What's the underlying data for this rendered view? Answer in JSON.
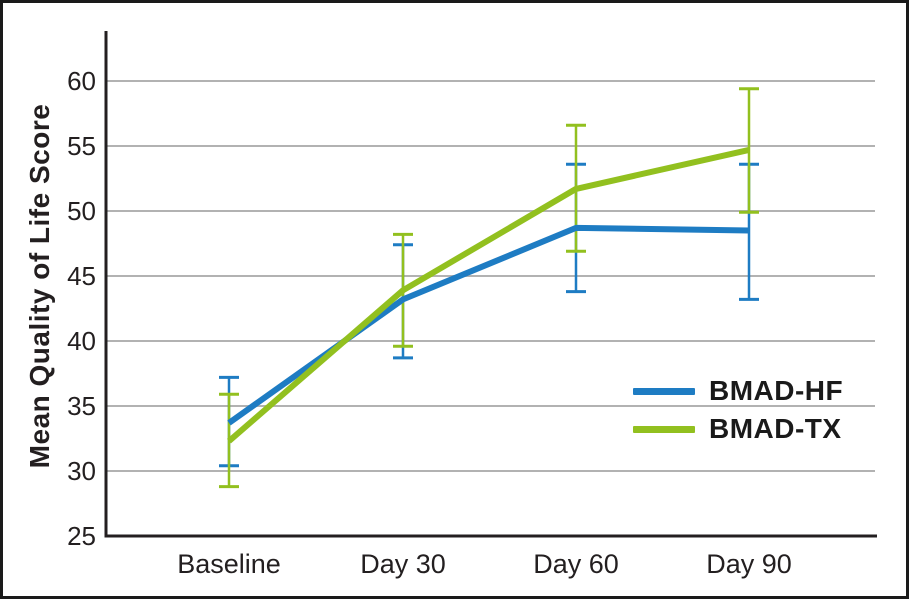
{
  "figure": {
    "background_color": "#ffffff",
    "border_color": "#1a1a1a"
  },
  "chart_data": {
    "type": "line",
    "title": "",
    "xlabel": "",
    "ylabel": "Mean Quality of Life Score",
    "categories": [
      "Baseline",
      "Day 30",
      "Day 60",
      "Day 90"
    ],
    "y_ticks": [
      25,
      30,
      35,
      40,
      45,
      50,
      55,
      60
    ],
    "ylim": [
      25,
      63.7
    ],
    "grid": true,
    "error_bars": true,
    "legend_position": "inside-bottom-right",
    "gridline_color": "#b2b2b2",
    "axis_color": "#231f20",
    "tick_label_color": "#231f20",
    "series": [
      {
        "name": "BMAD-HF",
        "color": "#1e7cc3",
        "values": [
          33.7,
          43.2,
          48.7,
          48.5
        ],
        "err_low": [
          30.4,
          38.7,
          43.8,
          43.2
        ],
        "err_high": [
          37.2,
          47.4,
          53.6,
          53.6
        ]
      },
      {
        "name": "BMAD-TX",
        "color": "#92c01f",
        "values": [
          32.3,
          43.9,
          51.7,
          54.7
        ],
        "err_low": [
          28.8,
          39.6,
          46.9,
          49.9
        ],
        "err_high": [
          35.9,
          48.2,
          56.6,
          59.4
        ]
      }
    ]
  }
}
